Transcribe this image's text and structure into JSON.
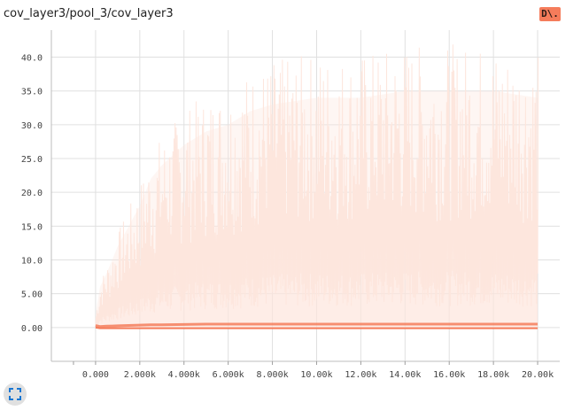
{
  "header": {
    "title": "cov_layer3/pool_3/cov_layer3",
    "download_label": "D\\."
  },
  "icons": {
    "expand": "fullscreen-icon"
  },
  "colors": {
    "series": "#f57c5b",
    "band": "#fde6dd"
  },
  "chart_data": {
    "type": "area",
    "title": "cov_layer3/pool_3/cov_layer3",
    "xlabel": "",
    "ylabel": "",
    "xlim": [
      -2000,
      21000
    ],
    "ylim": [
      -5,
      44
    ],
    "x_ticks": [
      0,
      2000,
      4000,
      6000,
      8000,
      10000,
      12000,
      14000,
      16000,
      18000,
      20000
    ],
    "x_tick_labels": [
      "0.000",
      "2.000k",
      "4.000k",
      "6.000k",
      "8.000k",
      "10.00k",
      "12.00k",
      "14.00k",
      "16.00k",
      "18.00k",
      "20.00k"
    ],
    "y_ticks": [
      0,
      5,
      10,
      15,
      20,
      25,
      30,
      35,
      40
    ],
    "y_tick_labels": [
      "0.00",
      "5.00",
      "10.0",
      "15.0",
      "20.0",
      "25.0",
      "30.0",
      "35.0",
      "40.0"
    ],
    "grid": true,
    "series": [
      {
        "x": [
          0,
          200,
          500,
          1000,
          1500,
          2000,
          2500,
          3000,
          4000,
          5000,
          6000,
          7000,
          8000,
          10000,
          12000,
          14000,
          16000,
          18000,
          20000
        ],
        "max": [
          2,
          6,
          8,
          12,
          15,
          18,
          22,
          24,
          27,
          29,
          30,
          32,
          33,
          34,
          34,
          35,
          35,
          35,
          34
        ],
        "upper": [
          1,
          2,
          3,
          4,
          5,
          6,
          7,
          7.5,
          8,
          8.5,
          9,
          9.5,
          10,
          10,
          10,
          10,
          10,
          10,
          10
        ],
        "mean": [
          0.3,
          0.15,
          0.2,
          0.25,
          0.3,
          0.35,
          0.4,
          0.4,
          0.45,
          0.5,
          0.5,
          0.5,
          0.5,
          0.5,
          0.5,
          0.5,
          0.5,
          0.5,
          0.5
        ],
        "min": [
          0,
          -0.1,
          -0.1,
          -0.1,
          -0.1,
          -0.1,
          -0.1,
          -0.1,
          -0.1,
          -0.1,
          -0.1,
          -0.1,
          -0.1,
          -0.1,
          -0.1,
          -0.1,
          -0.1,
          -0.1,
          -0.1
        ]
      }
    ]
  }
}
